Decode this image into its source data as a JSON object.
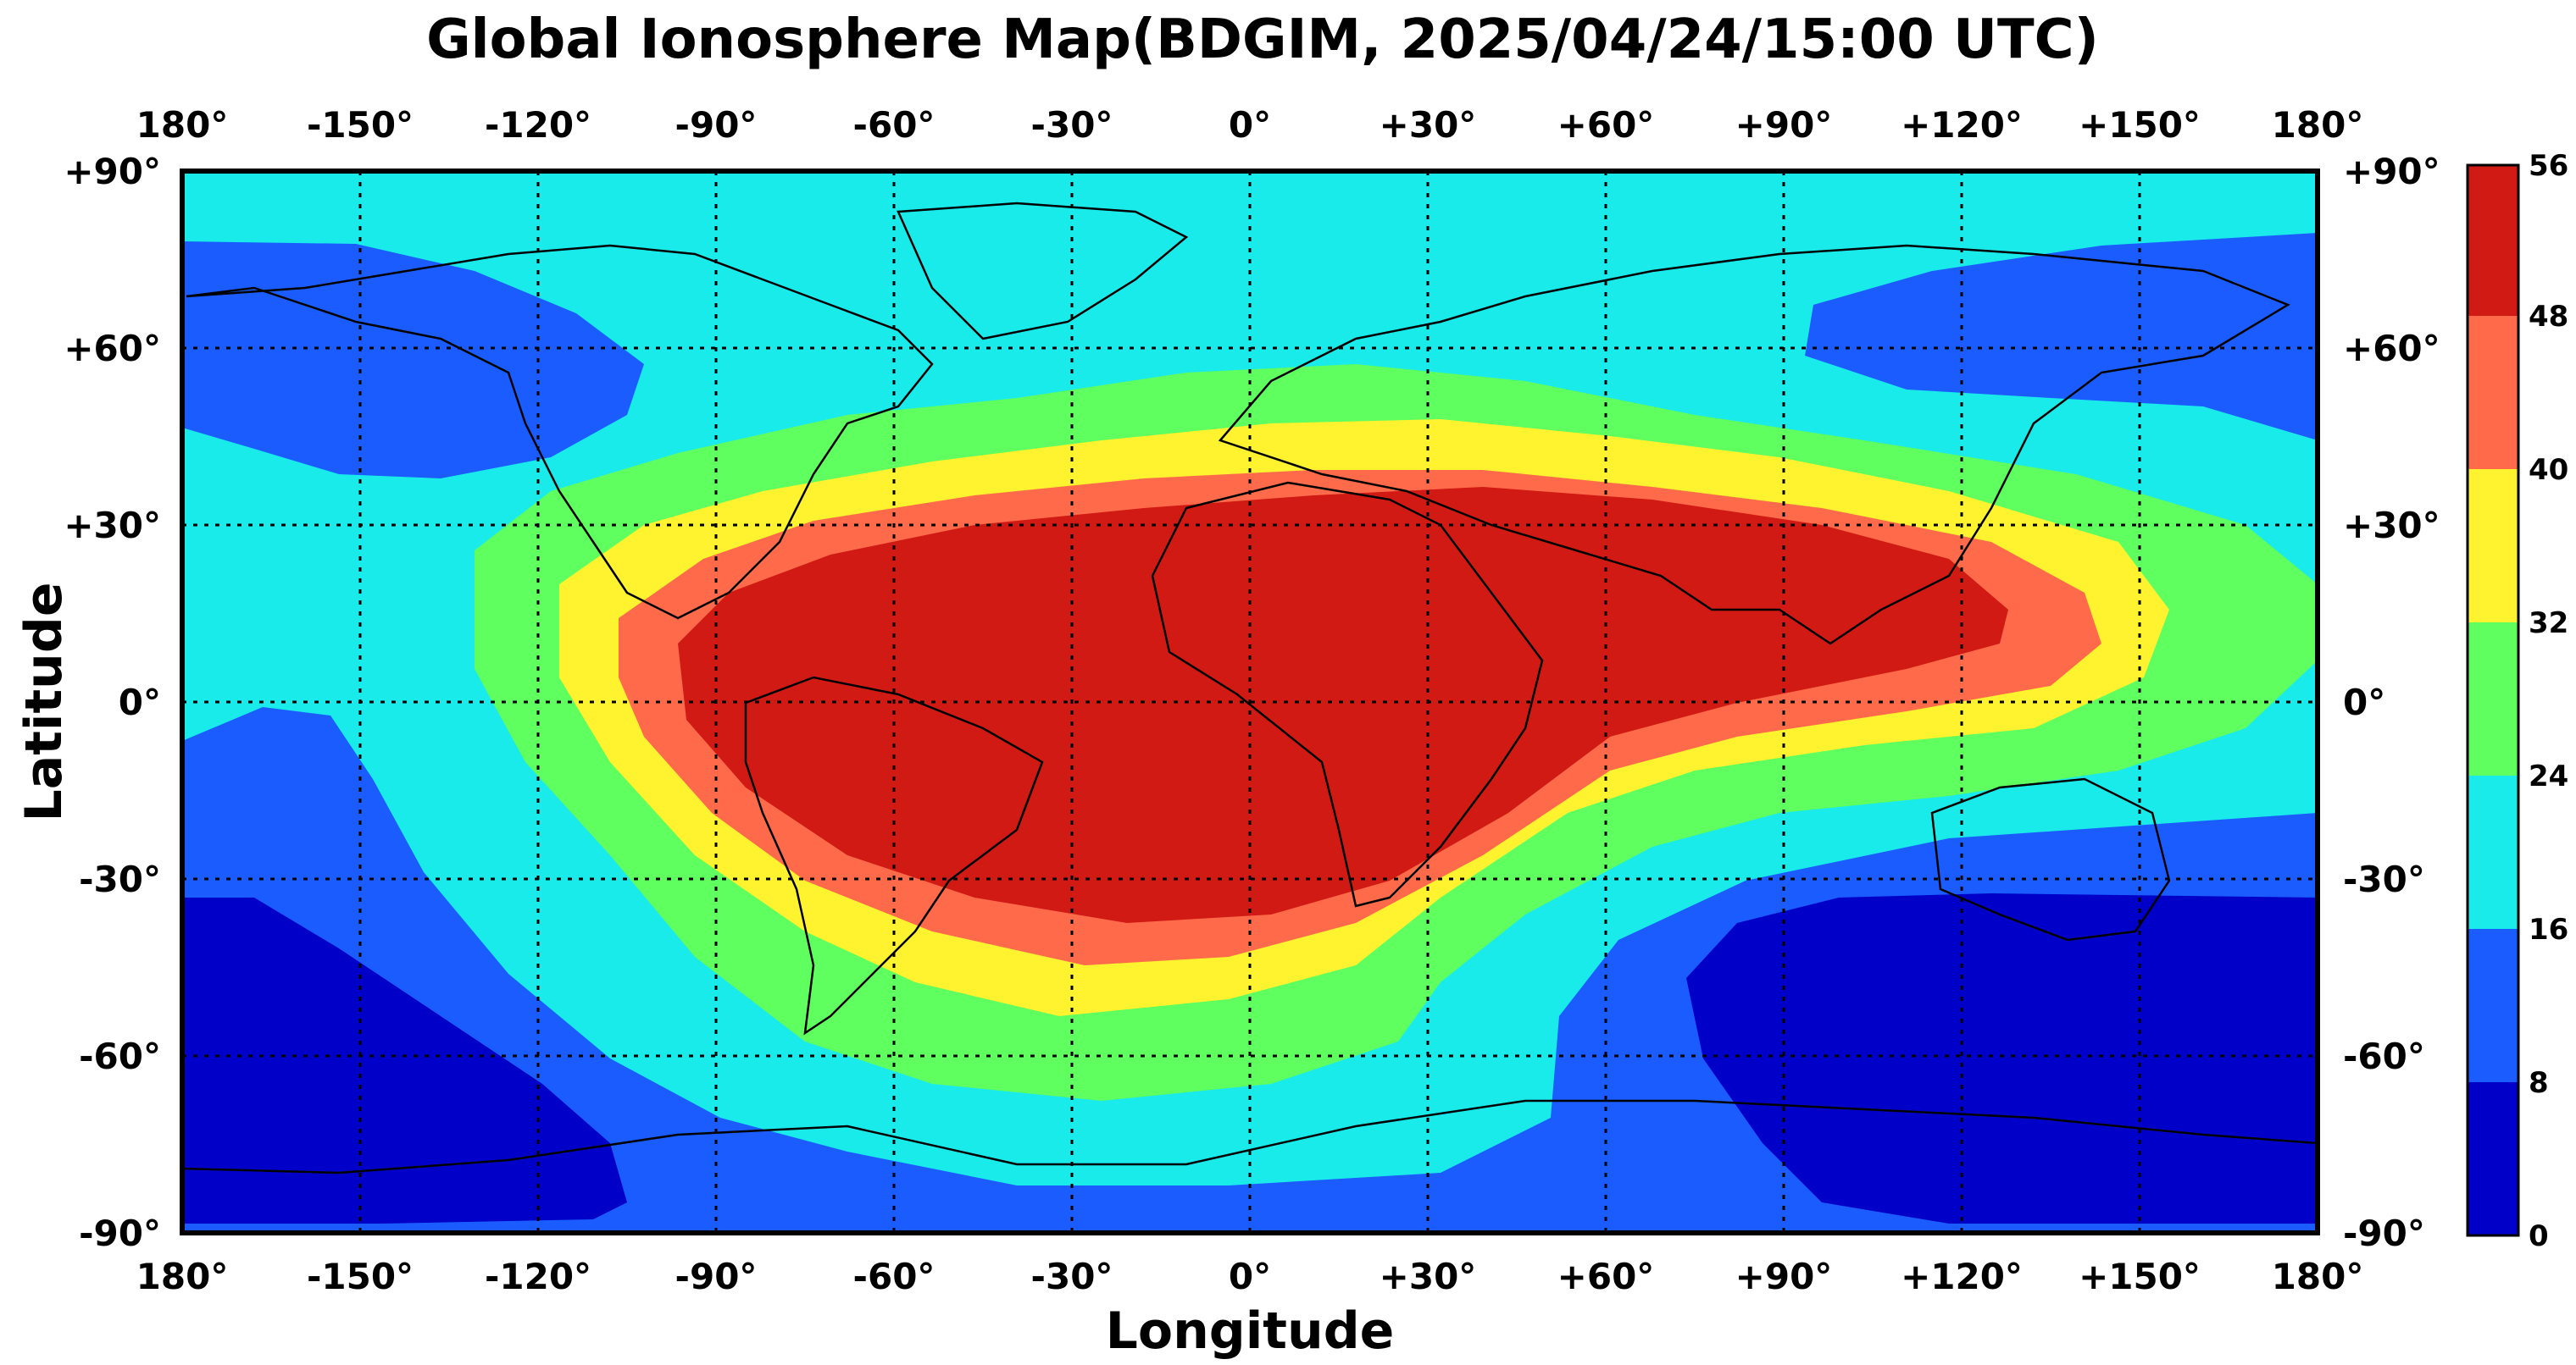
{
  "title": "Global Ionosphere Map(BDGIM, 2025/04/24/15:00 UTC)",
  "axes": {
    "xlabel": "Longitude",
    "ylabel": "Latitude",
    "lon_ticks": [
      "180°",
      "-150°",
      "-120°",
      "-90°",
      "-60°",
      "-30°",
      "0°",
      "+30°",
      "+60°",
      "+90°",
      "+120°",
      "+150°",
      "180°"
    ],
    "lat_ticks": [
      "+90°",
      "+60°",
      "+30°",
      "0°",
      "-30°",
      "-60°",
      "-90°"
    ],
    "xlim": [
      -180,
      180
    ],
    "ylim": [
      -90,
      90
    ],
    "grid": "dotted"
  },
  "colorbar": {
    "ticks": [
      "0",
      "8",
      "16",
      "24",
      "32",
      "40",
      "48",
      "56"
    ],
    "colors": [
      "#0000c8",
      "#1a5cff",
      "#19ebeb",
      "#5eff5e",
      "#fff22e",
      "#ff6a4a",
      "#d11a14"
    ]
  },
  "chart_data": {
    "type": "heatmap",
    "title": "Global Ionosphere Map(BDGIM, 2025/04/24/15:00 UTC)",
    "xlabel": "Longitude",
    "ylabel": "Latitude",
    "xlim": [
      -180,
      180
    ],
    "ylim": [
      -90,
      90
    ],
    "levels": [
      0,
      8,
      16,
      24,
      32,
      40,
      48,
      56
    ],
    "background_level": 16,
    "regions": [
      {
        "level": 8,
        "description": "north pacific / arctic low",
        "center": [
          -160,
          62
        ],
        "extent": [
          -180,
          -100,
          42,
          78
        ]
      },
      {
        "level": 8,
        "description": "arctic low east",
        "center": [
          150,
          65
        ],
        "extent": [
          80,
          180,
          45,
          78
        ]
      },
      {
        "level": 8,
        "description": "southern pacific",
        "center": [
          -150,
          -40
        ],
        "extent": [
          -180,
          -80,
          -90,
          0
        ]
      },
      {
        "level": 8,
        "description": "southern indian/pacific",
        "center": [
          90,
          -60
        ],
        "extent": [
          40,
          180,
          -90,
          -30
        ]
      },
      {
        "level": 0,
        "description": "south pacific minimum",
        "center": [
          -160,
          -70
        ],
        "extent": [
          -180,
          -100,
          -90,
          -30
        ]
      },
      {
        "level": 0,
        "description": "south indian minimum",
        "center": [
          110,
          -65
        ],
        "extent": [
          55,
          180,
          -90,
          -40
        ]
      },
      {
        "level": 24,
        "description": "equatorial ring",
        "center": [
          -5,
          -5
        ],
        "extent": [
          -125,
          170,
          -60,
          45
        ]
      },
      {
        "level": 32,
        "description": "equatorial ring",
        "center": [
          -5,
          -5
        ],
        "extent": [
          -105,
          150,
          -53,
          40
        ]
      },
      {
        "level": 40,
        "description": "equatorial ring",
        "center": [
          -5,
          -5
        ],
        "extent": [
          -98,
          140,
          -47,
          36
        ]
      },
      {
        "level": 48,
        "description": "maximum over americas/atlantic/africa",
        "center": [
          -10,
          0
        ],
        "extent": [
          -90,
          125,
          -40,
          33
        ]
      }
    ]
  }
}
